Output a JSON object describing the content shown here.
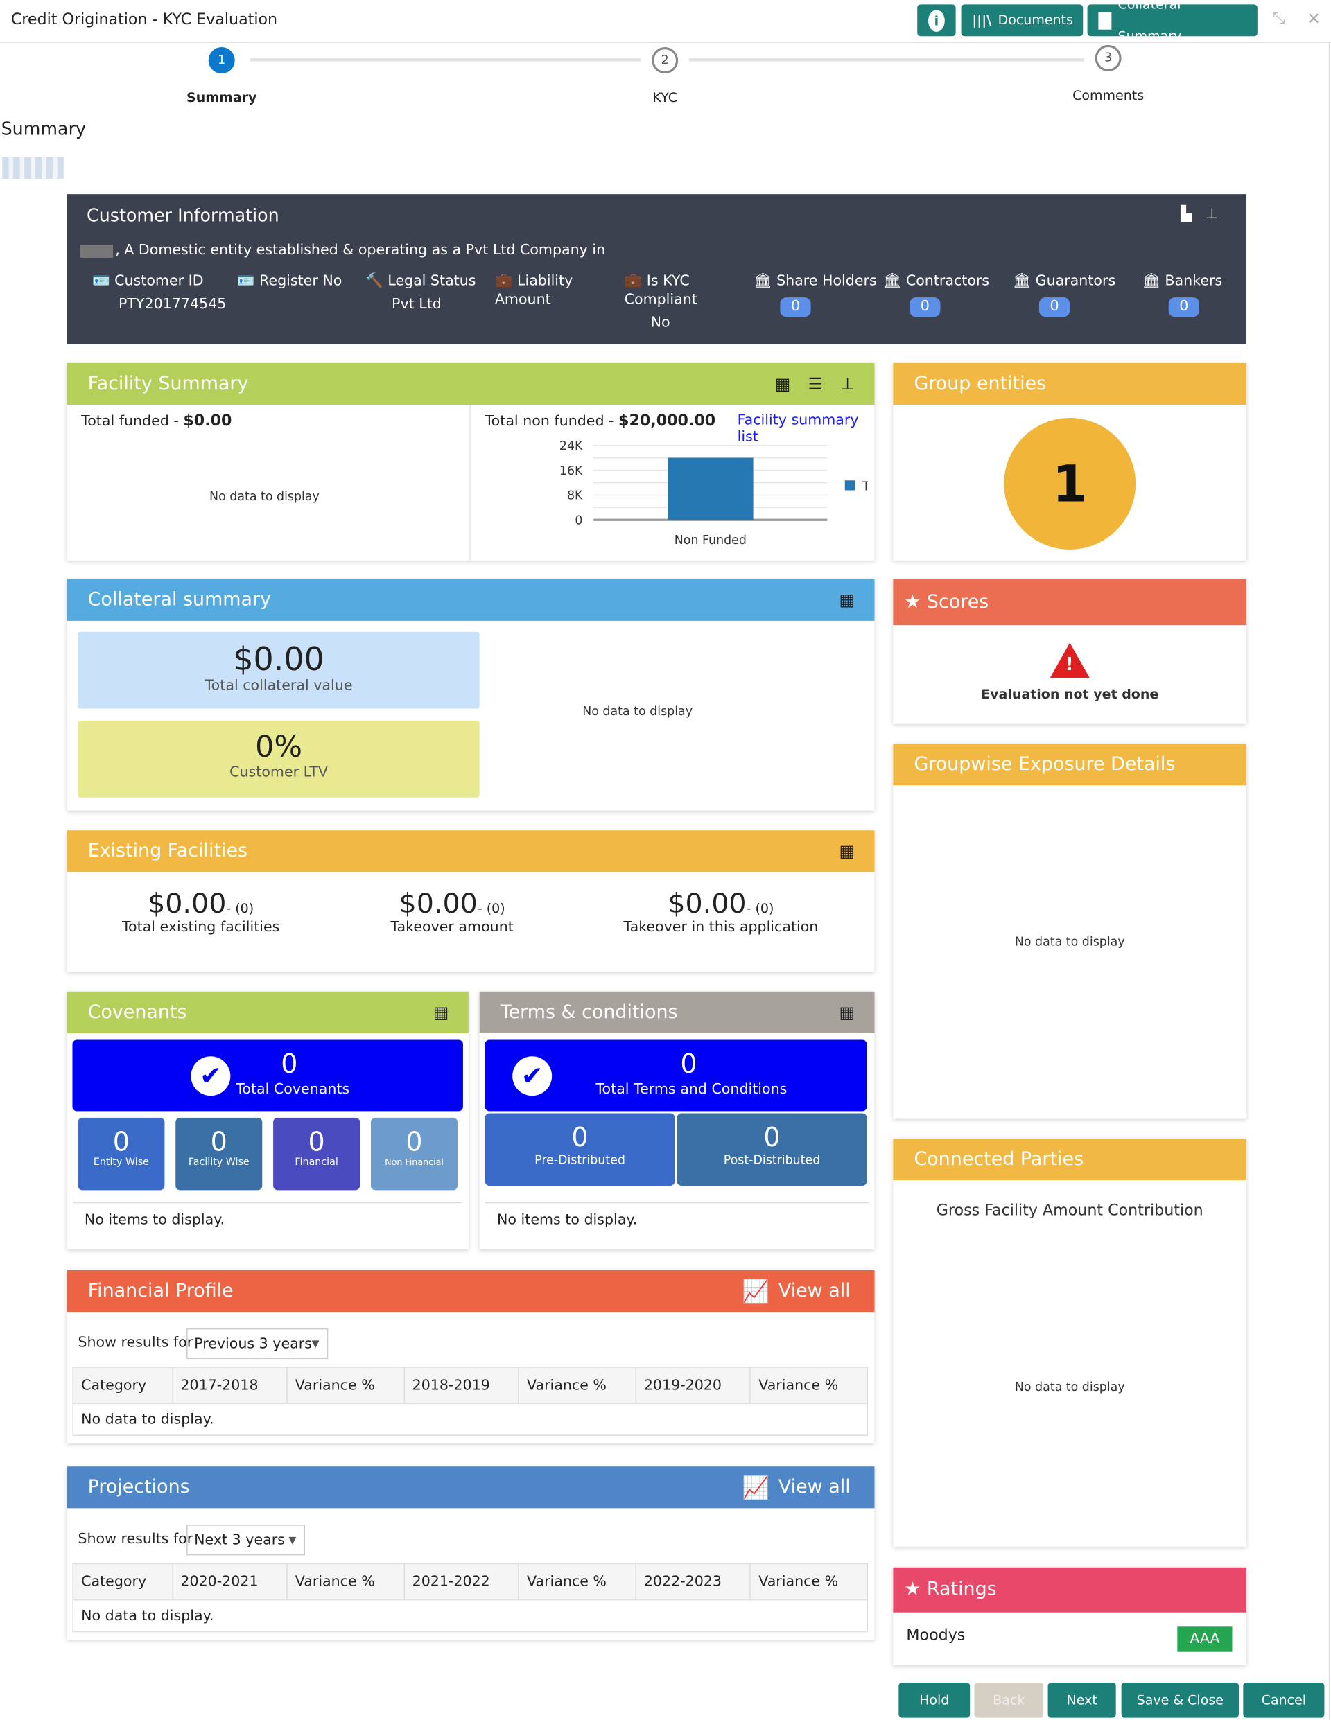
{
  "header": {
    "title": "Credit Origination - KYC Evaluation",
    "info_icon": "info-icon",
    "documents": "Documents",
    "collateral_summary": "Collateral Summary"
  },
  "stepper": [
    {
      "num": "1",
      "label": "Summary",
      "active": true
    },
    {
      "num": "2",
      "label": "KYC"
    },
    {
      "num": "3",
      "label": "Comments"
    }
  ],
  "page_heading": "Summary",
  "customer_info": {
    "title": "Customer Information",
    "description": ", A Domestic entity established & operating as a Pvt Ltd Company in",
    "fields": [
      {
        "label": "Customer ID",
        "value": "PTY201774545"
      },
      {
        "label": "Register No",
        "value": ""
      },
      {
        "label": "Legal Status",
        "value": "Pvt Ltd"
      },
      {
        "label": "Liability Amount",
        "value": ""
      },
      {
        "label": "Is KYC Compliant",
        "value": "No"
      }
    ],
    "counts": [
      {
        "label": "Share Holders",
        "value": "0"
      },
      {
        "label": "Contractors",
        "value": "0"
      },
      {
        "label": "Guarantors",
        "value": "0"
      },
      {
        "label": "Bankers",
        "value": "0"
      }
    ]
  },
  "facility_summary": {
    "title": "Facility Summary",
    "color": "#b5d05a",
    "funded_label": "Total funded - ",
    "funded_value": "$0.00",
    "no_data": "No data to display",
    "non_funded_label": "Total non funded - ",
    "non_funded_value": "$20,000.00",
    "list_link": "Facility summary list"
  },
  "chart_data": {
    "type": "bar",
    "categories": [
      "Non Funded"
    ],
    "series": [
      {
        "name": "Term Loan",
        "values": [
          20000
        ],
        "color": "#2678b2"
      }
    ],
    "ylim": [
      0,
      24000
    ],
    "yticks": [
      {
        "v": 0,
        "l": "0"
      },
      {
        "v": 8000,
        "l": "8K"
      },
      {
        "v": 16000,
        "l": "16K"
      },
      {
        "v": 24000,
        "l": "24K"
      }
    ],
    "legend": "right",
    "grid": true
  },
  "group_entities": {
    "title": "Group entities",
    "count": "1",
    "color": "#f1b944"
  },
  "collateral": {
    "title": "Collateral summary",
    "color": "#55aae0",
    "total_value": "$0.00",
    "total_label": "Total collateral value",
    "ltv": "0%",
    "ltv_label": "Customer LTV",
    "no_data": "No data to display"
  },
  "scores": {
    "title": "Scores",
    "color": "#ec6e52",
    "message": "Evaluation not yet done"
  },
  "existing": {
    "title": "Existing Facilities",
    "color": "#f1b944",
    "items": [
      {
        "value": "$0.00",
        "count": "- (0)",
        "label": "Total existing facilities"
      },
      {
        "value": "$0.00",
        "count": "- (0)",
        "label": "Takeover amount"
      },
      {
        "value": "$0.00",
        "count": "- (0)",
        "label": "Takeover in this application"
      }
    ]
  },
  "groupwise": {
    "title": "Groupwise Exposure Details",
    "color": "#f1b944",
    "no_data": "No data to display"
  },
  "covenants": {
    "title": "Covenants",
    "color": "#b5d05a",
    "total": "0",
    "total_label": "Total Covenants",
    "tiles": [
      {
        "value": "0",
        "label": "Entity Wise",
        "color": "#3a6bc9"
      },
      {
        "value": "0",
        "label": "Facility Wise",
        "color": "#3b70a6"
      },
      {
        "value": "0",
        "label": "Financial",
        "color": "#4a4bbf"
      },
      {
        "value": "0",
        "label": "Non Financial",
        "color": "#6b9ccb"
      }
    ],
    "empty": "No items to display."
  },
  "terms": {
    "title": "Terms & conditions",
    "color": "#a7a29b",
    "total": "0",
    "total_label": "Total Terms and Conditions",
    "tiles": [
      {
        "value": "0",
        "label": "Pre-Distributed",
        "color": "#3a6bc9"
      },
      {
        "value": "0",
        "label": "Post-Distributed",
        "color": "#3b70a6"
      }
    ],
    "empty": "No items to display."
  },
  "connected": {
    "title": "Connected Parties",
    "color": "#f1b944",
    "subtitle": "Gross Facility Amount Contribution",
    "no_data": "No data to display"
  },
  "financial": {
    "title": "Financial Profile",
    "color": "#ec6444",
    "view_all": "View all",
    "show_label": "Show results for",
    "select": "Previous 3 years",
    "columns": [
      "Category",
      "2017-2018",
      "Variance %",
      "2018-2019",
      "Variance %",
      "2019-2020",
      "Variance %"
    ],
    "empty": "No data to display."
  },
  "projections": {
    "title": "Projections",
    "color": "#4e86c8",
    "view_all": "View all",
    "show_label": "Show results for",
    "select": "Next 3 years",
    "columns": [
      "Category",
      "2020-2021",
      "Variance %",
      "2021-2022",
      "Variance %",
      "2022-2023",
      "Variance %"
    ],
    "empty": "No data to display."
  },
  "ratings": {
    "title": "Ratings",
    "color": "#e8496a",
    "agency": "Moodys",
    "rating": "AAA"
  },
  "footer": {
    "hold": "Hold",
    "back": "Back",
    "next": "Next",
    "save_close": "Save & Close",
    "cancel": "Cancel"
  }
}
